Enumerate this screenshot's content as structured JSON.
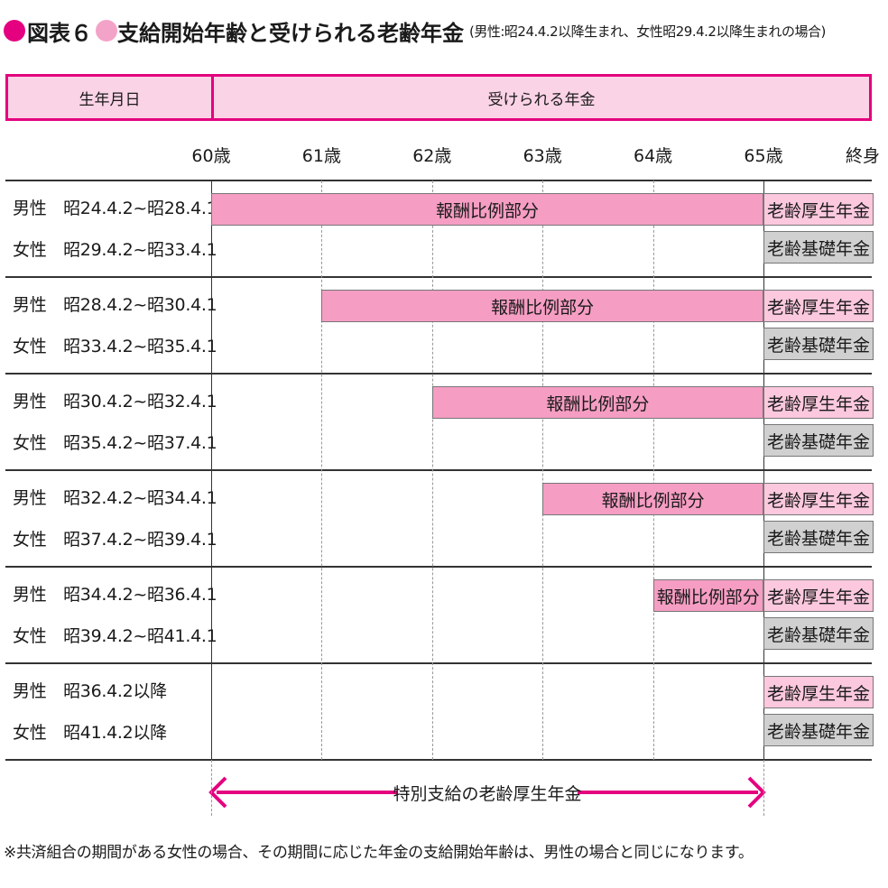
{
  "title": {
    "figure_label": "図表６",
    "main": "支給開始年齢と受けられる老齢年金",
    "sub": "(男性:昭24.4.2以降生まれ、女性昭29.4.2以降生まれの場合)"
  },
  "colors": {
    "magenta": "#e4007f",
    "pink_bar": "#f59dc3",
    "pink_box": "#fbc8dd",
    "gray_box": "#d0d0d0",
    "header_bg": "#fbd3e6"
  },
  "header": {
    "birth_col": "生年月日",
    "pension_col": "受けられる年金"
  },
  "ages": [
    "60歳",
    "61歳",
    "62歳",
    "63歳",
    "64歳",
    "65歳",
    "終身"
  ],
  "bar_label": "報酬比例部分",
  "box_labels": {
    "kosei": "老齢厚生年金",
    "kiso": "老齢基礎年金"
  },
  "groups": [
    {
      "male": "男性　昭24.4.2~昭28.4.1",
      "female": "女性　昭29.4.2~昭33.4.1",
      "start_age": 60
    },
    {
      "male": "男性　昭28.4.2~昭30.4.1",
      "female": "女性　昭33.4.2~昭35.4.1",
      "start_age": 61
    },
    {
      "male": "男性　昭30.4.2~昭32.4.1",
      "female": "女性　昭35.4.2~昭37.4.1",
      "start_age": 62
    },
    {
      "male": "男性　昭32.4.2~昭34.4.1",
      "female": "女性　昭37.4.2~昭39.4.1",
      "start_age": 63
    },
    {
      "male": "男性　昭34.4.2~昭36.4.1",
      "female": "女性　昭39.4.2~昭41.4.1",
      "start_age": 64
    },
    {
      "male": "男性　昭36.4.2以降",
      "female": "女性　昭41.4.2以降",
      "start_age": null
    }
  ],
  "arrow_label": "特別支給の老齢厚生年金",
  "note": "※共済組合の期間がある女性の場合、その期間に応じた年金の支給開始年齢は、男性の場合と同じになります。"
}
